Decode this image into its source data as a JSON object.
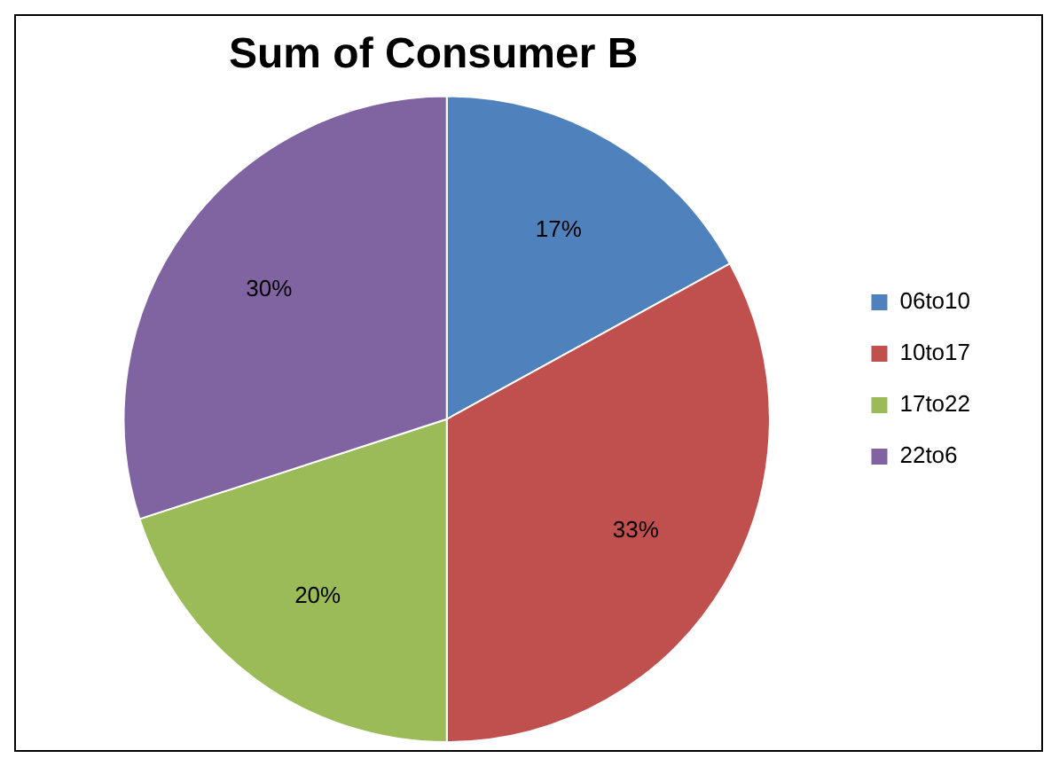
{
  "chart_data": {
    "type": "pie",
    "title": "Sum of Consumer B",
    "categories": [
      "06to10",
      "10to17",
      "17to22",
      "22to6"
    ],
    "values": [
      17,
      33,
      20,
      30
    ],
    "value_labels": [
      "17%",
      "33%",
      "20%",
      "30%"
    ],
    "colors": [
      "#4f81bd",
      "#c0504d",
      "#9bbb59",
      "#8064a2"
    ],
    "legend": "right"
  }
}
